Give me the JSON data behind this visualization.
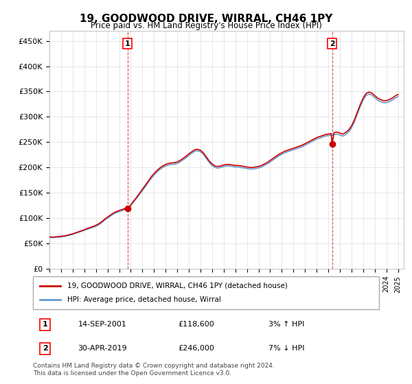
{
  "title": "19, GOODWOOD DRIVE, WIRRAL, CH46 1PY",
  "subtitle": "Price paid vs. HM Land Registry's House Price Index (HPI)",
  "ylabel_ticks": [
    "£0",
    "£50K",
    "£100K",
    "£150K",
    "£200K",
    "£250K",
    "£300K",
    "£350K",
    "£400K",
    "£450K"
  ],
  "ytick_values": [
    0,
    50000,
    100000,
    150000,
    200000,
    250000,
    300000,
    350000,
    400000,
    450000
  ],
  "ylim": [
    0,
    470000
  ],
  "xlim_start": 1995.0,
  "xlim_end": 2025.5,
  "red_color": "#cc0000",
  "blue_color": "#6699cc",
  "dashed_color": "#cc0000",
  "transaction1_x": 2001.71,
  "transaction1_y": 118600,
  "transaction2_x": 2019.33,
  "transaction2_y": 246000,
  "legend_label_red": "19, GOODWOOD DRIVE, WIRRAL, CH46 1PY (detached house)",
  "legend_label_blue": "HPI: Average price, detached house, Wirral",
  "annotation1_label": "1",
  "annotation2_label": "2",
  "table_row1": "14-SEP-2001          £118,600          3% ↑ HPI",
  "table_row2": "30-APR-2019          £246,000          7% ↓ HPI",
  "footer": "Contains HM Land Registry data © Crown copyright and database right 2024.\nThis data is licensed under the Open Government Licence v3.0.",
  "hpi_years": [
    1995.0,
    1995.25,
    1995.5,
    1995.75,
    1996.0,
    1996.25,
    1996.5,
    1996.75,
    1997.0,
    1997.25,
    1997.5,
    1997.75,
    1998.0,
    1998.25,
    1998.5,
    1998.75,
    1999.0,
    1999.25,
    1999.5,
    1999.75,
    2000.0,
    2000.25,
    2000.5,
    2000.75,
    2001.0,
    2001.25,
    2001.5,
    2001.75,
    2002.0,
    2002.25,
    2002.5,
    2002.75,
    2003.0,
    2003.25,
    2003.5,
    2003.75,
    2004.0,
    2004.25,
    2004.5,
    2004.75,
    2005.0,
    2005.25,
    2005.5,
    2005.75,
    2006.0,
    2006.25,
    2006.5,
    2006.75,
    2007.0,
    2007.25,
    2007.5,
    2007.75,
    2008.0,
    2008.25,
    2008.5,
    2008.75,
    2009.0,
    2009.25,
    2009.5,
    2009.75,
    2010.0,
    2010.25,
    2010.5,
    2010.75,
    2011.0,
    2011.25,
    2011.5,
    2011.75,
    2012.0,
    2012.25,
    2012.5,
    2012.75,
    2013.0,
    2013.25,
    2013.5,
    2013.75,
    2014.0,
    2014.25,
    2014.5,
    2014.75,
    2015.0,
    2015.25,
    2015.5,
    2015.75,
    2016.0,
    2016.25,
    2016.5,
    2016.75,
    2017.0,
    2017.25,
    2017.5,
    2017.75,
    2018.0,
    2018.25,
    2018.5,
    2018.75,
    2019.0,
    2019.25,
    2019.5,
    2019.75,
    2020.0,
    2020.25,
    2020.5,
    2020.75,
    2021.0,
    2021.25,
    2021.5,
    2021.75,
    2022.0,
    2022.25,
    2022.5,
    2022.75,
    2023.0,
    2023.25,
    2023.5,
    2023.75,
    2024.0,
    2024.25,
    2024.5,
    2024.75,
    2025.0
  ],
  "hpi_values": [
    62000,
    61500,
    62000,
    62500,
    63000,
    64000,
    65000,
    66500,
    68000,
    70000,
    72000,
    74000,
    76000,
    78000,
    80000,
    82000,
    84000,
    87000,
    91000,
    96000,
    100000,
    104000,
    108000,
    111000,
    113000,
    115000,
    117000,
    120000,
    125000,
    132000,
    139000,
    147000,
    154000,
    162000,
    170000,
    178000,
    185000,
    191000,
    196000,
    200000,
    203000,
    205000,
    206000,
    206500,
    208000,
    211000,
    215000,
    219000,
    224000,
    228000,
    232000,
    233000,
    231000,
    226000,
    218000,
    210000,
    204000,
    200000,
    199000,
    200000,
    202000,
    203000,
    203000,
    202000,
    201000,
    201000,
    200000,
    199000,
    198000,
    197000,
    197000,
    198000,
    199000,
    201000,
    204000,
    207000,
    211000,
    215000,
    219000,
    223000,
    226000,
    229000,
    231000,
    233000,
    235000,
    237000,
    239000,
    241000,
    244000,
    247000,
    250000,
    253000,
    256000,
    258000,
    260000,
    262000,
    263000,
    264000,
    265000,
    266000,
    264000,
    262000,
    265000,
    270000,
    278000,
    290000,
    305000,
    320000,
    333000,
    342000,
    345000,
    343000,
    338000,
    333000,
    330000,
    328000,
    328000,
    330000,
    333000,
    337000,
    340000
  ],
  "red_years": [
    1995.0,
    1995.25,
    1995.5,
    1995.75,
    1996.0,
    1996.25,
    1996.5,
    1996.75,
    1997.0,
    1997.25,
    1997.5,
    1997.75,
    1998.0,
    1998.25,
    1998.5,
    1998.75,
    1999.0,
    1999.25,
    1999.5,
    1999.75,
    2000.0,
    2000.25,
    2000.5,
    2000.75,
    2001.0,
    2001.25,
    2001.5,
    2001.71,
    2002.0,
    2002.25,
    2002.5,
    2002.75,
    2003.0,
    2003.25,
    2003.5,
    2003.75,
    2004.0,
    2004.25,
    2004.5,
    2004.75,
    2005.0,
    2005.25,
    2005.5,
    2005.75,
    2006.0,
    2006.25,
    2006.5,
    2006.75,
    2007.0,
    2007.25,
    2007.5,
    2007.75,
    2008.0,
    2008.25,
    2008.5,
    2008.75,
    2009.0,
    2009.25,
    2009.5,
    2009.75,
    2010.0,
    2010.25,
    2010.5,
    2010.75,
    2011.0,
    2011.25,
    2011.5,
    2011.75,
    2012.0,
    2012.25,
    2012.5,
    2012.75,
    2013.0,
    2013.25,
    2013.5,
    2013.75,
    2014.0,
    2014.25,
    2014.5,
    2014.75,
    2015.0,
    2015.25,
    2015.5,
    2015.75,
    2016.0,
    2016.25,
    2016.5,
    2016.75,
    2017.0,
    2017.25,
    2017.5,
    2017.75,
    2018.0,
    2018.25,
    2018.5,
    2018.75,
    2019.0,
    2019.25,
    2019.33,
    2019.5,
    2019.75,
    2020.0,
    2020.25,
    2020.5,
    2020.75,
    2021.0,
    2021.25,
    2021.5,
    2021.75,
    2022.0,
    2022.25,
    2022.5,
    2022.75,
    2023.0,
    2023.25,
    2023.5,
    2023.75,
    2024.0,
    2024.25,
    2024.5,
    2024.75,
    2025.0
  ],
  "red_values": [
    63000,
    62500,
    63000,
    63500,
    64000,
    65000,
    66000,
    67500,
    69000,
    71000,
    73000,
    75000,
    77000,
    79500,
    81500,
    83500,
    86000,
    89000,
    93000,
    98000,
    102000,
    106000,
    110000,
    113000,
    115000,
    117000,
    119000,
    118600,
    126000,
    134000,
    141000,
    149000,
    157000,
    165000,
    173000,
    181000,
    188000,
    194000,
    199000,
    203000,
    206000,
    208000,
    209000,
    209500,
    211000,
    214000,
    218000,
    222000,
    227000,
    231000,
    235000,
    236000,
    234000,
    229000,
    221000,
    213000,
    207000,
    203000,
    202000,
    203000,
    205000,
    206000,
    206000,
    205000,
    204000,
    204000,
    203000,
    202000,
    201000,
    200000,
    200000,
    201000,
    202000,
    204000,
    207000,
    210000,
    214000,
    218000,
    222000,
    226000,
    229000,
    232000,
    234000,
    236000,
    238000,
    240000,
    242000,
    244000,
    247000,
    250000,
    253000,
    256000,
    259000,
    261000,
    263000,
    265000,
    266000,
    267000,
    246000,
    269000,
    270000,
    268000,
    266000,
    269000,
    274000,
    282000,
    294000,
    309000,
    324000,
    337000,
    346000,
    349000,
    347000,
    342000,
    337000,
    334000,
    332000,
    332000,
    334000,
    337000,
    341000,
    344000
  ]
}
